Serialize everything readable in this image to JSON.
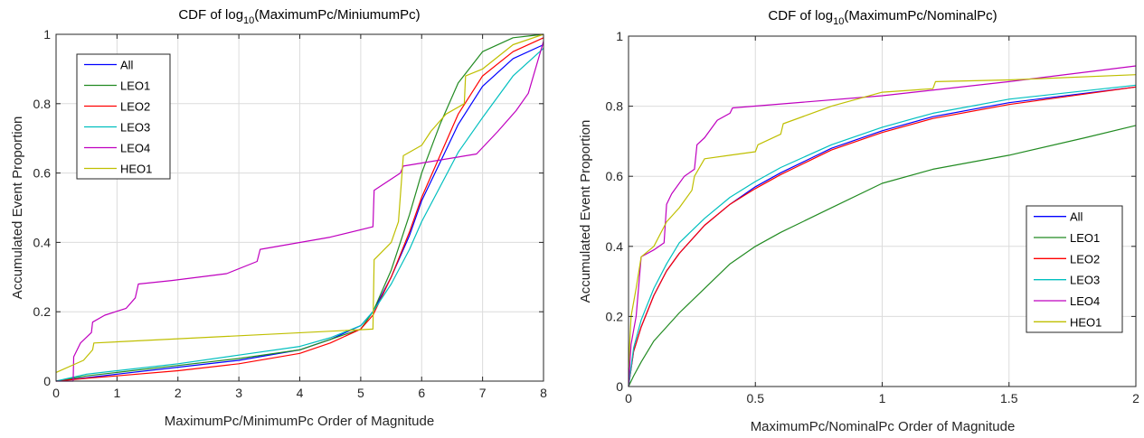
{
  "chart_data": [
    {
      "type": "line",
      "title_prefix": "CDF of log",
      "title_sub": "10",
      "title_suffix": "(MaximumPc/MiniumumPc)",
      "xlabel": "MaximumPc/MinimumPc Order of Magnitude",
      "ylabel": "Accumulated Event Proportion",
      "xlim": [
        0,
        8
      ],
      "ylim": [
        0,
        1
      ],
      "xticks": [
        0,
        1,
        2,
        3,
        4,
        5,
        6,
        7,
        8
      ],
      "yticks": [
        0,
        0.2,
        0.4,
        0.6,
        0.8,
        1
      ],
      "xtick_labels": [
        "0",
        "1",
        "2",
        "3",
        "4",
        "5",
        "6",
        "7",
        "8"
      ],
      "ytick_labels": [
        "0",
        "0.2",
        "0.4",
        "0.6",
        "0.8",
        "1"
      ],
      "grid": true,
      "legend_position": "top-left",
      "series": [
        {
          "name": "All",
          "color": "#0000ff",
          "x": [
            0,
            0.5,
            1,
            2,
            3,
            4,
            4.5,
            5,
            5.2,
            5.5,
            5.8,
            6,
            6.3,
            6.6,
            7,
            7.5,
            8
          ],
          "y": [
            0,
            0.01,
            0.02,
            0.04,
            0.06,
            0.09,
            0.12,
            0.16,
            0.2,
            0.3,
            0.42,
            0.52,
            0.63,
            0.74,
            0.85,
            0.93,
            0.97
          ]
        },
        {
          "name": "LEO1",
          "color": "#228b22",
          "x": [
            0,
            0.5,
            1,
            2,
            3,
            4,
            4.5,
            5,
            5.2,
            5.5,
            5.8,
            6,
            6.3,
            6.6,
            7,
            7.5,
            8
          ],
          "y": [
            0,
            0.015,
            0.025,
            0.045,
            0.065,
            0.09,
            0.12,
            0.15,
            0.2,
            0.32,
            0.48,
            0.6,
            0.74,
            0.86,
            0.95,
            0.99,
            1.0
          ]
        },
        {
          "name": "LEO2",
          "color": "#ff0000",
          "x": [
            0,
            0.5,
            1,
            2,
            3,
            4,
            4.5,
            5,
            5.2,
            5.5,
            5.8,
            6,
            6.3,
            6.6,
            7,
            7.5,
            8
          ],
          "y": [
            0,
            0.008,
            0.015,
            0.03,
            0.05,
            0.08,
            0.11,
            0.15,
            0.19,
            0.3,
            0.43,
            0.53,
            0.65,
            0.77,
            0.88,
            0.95,
            0.99
          ]
        },
        {
          "name": "LEO3",
          "color": "#00bfbf",
          "x": [
            0,
            0.5,
            1,
            2,
            3,
            4,
            4.5,
            5,
            5.2,
            5.5,
            5.8,
            6,
            6.3,
            6.6,
            7,
            7.5,
            8
          ],
          "y": [
            0,
            0.02,
            0.03,
            0.05,
            0.075,
            0.1,
            0.125,
            0.16,
            0.2,
            0.28,
            0.38,
            0.46,
            0.56,
            0.66,
            0.76,
            0.88,
            0.96
          ]
        },
        {
          "name": "LEO4",
          "color": "#bf00bf",
          "x": [
            0,
            0.28,
            0.29,
            0.4,
            0.58,
            0.6,
            0.8,
            1.15,
            1.3,
            1.35,
            1.9,
            2.8,
            3.3,
            3.35,
            4.5,
            5.2,
            5.22,
            5.65,
            5.7,
            6.9,
            7.25,
            7.55,
            7.75,
            7.9,
            8
          ],
          "y": [
            0,
            0.0,
            0.07,
            0.11,
            0.14,
            0.17,
            0.19,
            0.21,
            0.24,
            0.28,
            0.29,
            0.31,
            0.345,
            0.38,
            0.415,
            0.445,
            0.55,
            0.6,
            0.62,
            0.655,
            0.72,
            0.78,
            0.83,
            0.92,
            0.98
          ]
        },
        {
          "name": "HEO1",
          "color": "#bfbf00",
          "x": [
            0,
            0.45,
            0.6,
            0.62,
            5.2,
            5.22,
            5.5,
            5.62,
            5.7,
            6,
            6.15,
            6.4,
            6.7,
            6.72,
            7,
            7.5,
            8
          ],
          "y": [
            0.025,
            0.06,
            0.09,
            0.11,
            0.15,
            0.35,
            0.4,
            0.46,
            0.65,
            0.68,
            0.72,
            0.77,
            0.8,
            0.88,
            0.9,
            0.97,
            1.0
          ]
        }
      ]
    },
    {
      "type": "line",
      "title_prefix": "CDF of log",
      "title_sub": "10",
      "title_suffix": "(MaximumPc/NominalPc)",
      "xlabel": "MaximumPc/NominalPc Order of Magnitude",
      "ylabel": "Accumulated Event Proportion",
      "xlim": [
        0,
        2
      ],
      "ylim": [
        0,
        1
      ],
      "xticks": [
        0,
        0.5,
        1,
        1.5,
        2
      ],
      "yticks": [
        0,
        0.2,
        0.4,
        0.6,
        0.8,
        1
      ],
      "xtick_labels": [
        "0",
        "0.5",
        "1",
        "1.5",
        "2"
      ],
      "ytick_labels": [
        "0",
        "0.2",
        "0.4",
        "0.6",
        "0.8",
        "1"
      ],
      "grid": true,
      "legend_position": "bottom-right",
      "series": [
        {
          "name": "All",
          "color": "#0000ff",
          "x": [
            0,
            0.02,
            0.05,
            0.1,
            0.15,
            0.2,
            0.3,
            0.4,
            0.5,
            0.6,
            0.8,
            1.0,
            1.2,
            1.5,
            2.0
          ],
          "y": [
            0,
            0.1,
            0.17,
            0.26,
            0.33,
            0.38,
            0.46,
            0.52,
            0.57,
            0.61,
            0.68,
            0.73,
            0.77,
            0.81,
            0.855
          ]
        },
        {
          "name": "LEO1",
          "color": "#228b22",
          "x": [
            0,
            0.02,
            0.05,
            0.1,
            0.15,
            0.2,
            0.3,
            0.4,
            0.5,
            0.6,
            0.8,
            1.0,
            1.2,
            1.5,
            1.8,
            2.0
          ],
          "y": [
            0,
            0.03,
            0.07,
            0.13,
            0.17,
            0.21,
            0.28,
            0.35,
            0.4,
            0.44,
            0.51,
            0.58,
            0.62,
            0.66,
            0.71,
            0.745
          ]
        },
        {
          "name": "LEO2",
          "color": "#ff0000",
          "x": [
            0,
            0.02,
            0.05,
            0.1,
            0.15,
            0.2,
            0.3,
            0.4,
            0.5,
            0.6,
            0.8,
            1.0,
            1.2,
            1.5,
            2.0
          ],
          "y": [
            0,
            0.1,
            0.17,
            0.26,
            0.33,
            0.38,
            0.46,
            0.52,
            0.565,
            0.605,
            0.675,
            0.725,
            0.765,
            0.805,
            0.855
          ]
        },
        {
          "name": "LEO3",
          "color": "#00bfbf",
          "x": [
            0,
            0.02,
            0.05,
            0.1,
            0.15,
            0.2,
            0.3,
            0.4,
            0.5,
            0.6,
            0.8,
            1.0,
            1.2,
            1.5,
            2.0
          ],
          "y": [
            0,
            0.11,
            0.19,
            0.28,
            0.35,
            0.41,
            0.48,
            0.54,
            0.585,
            0.625,
            0.69,
            0.74,
            0.78,
            0.82,
            0.86
          ]
        },
        {
          "name": "LEO4",
          "color": "#bf00bf",
          "x": [
            0,
            0.01,
            0.03,
            0.05,
            0.1,
            0.14,
            0.15,
            0.17,
            0.22,
            0.26,
            0.27,
            0.3,
            0.35,
            0.4,
            0.41,
            1.0,
            1.5,
            2.0
          ],
          "y": [
            0,
            0.12,
            0.2,
            0.37,
            0.39,
            0.41,
            0.52,
            0.55,
            0.6,
            0.62,
            0.69,
            0.71,
            0.76,
            0.78,
            0.795,
            0.83,
            0.87,
            0.915
          ]
        },
        {
          "name": "HEO1",
          "color": "#bfbf00",
          "x": [
            0,
            0.01,
            0.03,
            0.05,
            0.1,
            0.15,
            0.2,
            0.25,
            0.26,
            0.3,
            0.4,
            0.5,
            0.51,
            0.6,
            0.61,
            0.8,
            1.0,
            1.2,
            1.21,
            1.5,
            2.0
          ],
          "y": [
            0.05,
            0.2,
            0.28,
            0.37,
            0.4,
            0.47,
            0.51,
            0.56,
            0.6,
            0.65,
            0.66,
            0.67,
            0.69,
            0.72,
            0.75,
            0.8,
            0.84,
            0.85,
            0.87,
            0.875,
            0.89
          ]
        }
      ]
    }
  ]
}
